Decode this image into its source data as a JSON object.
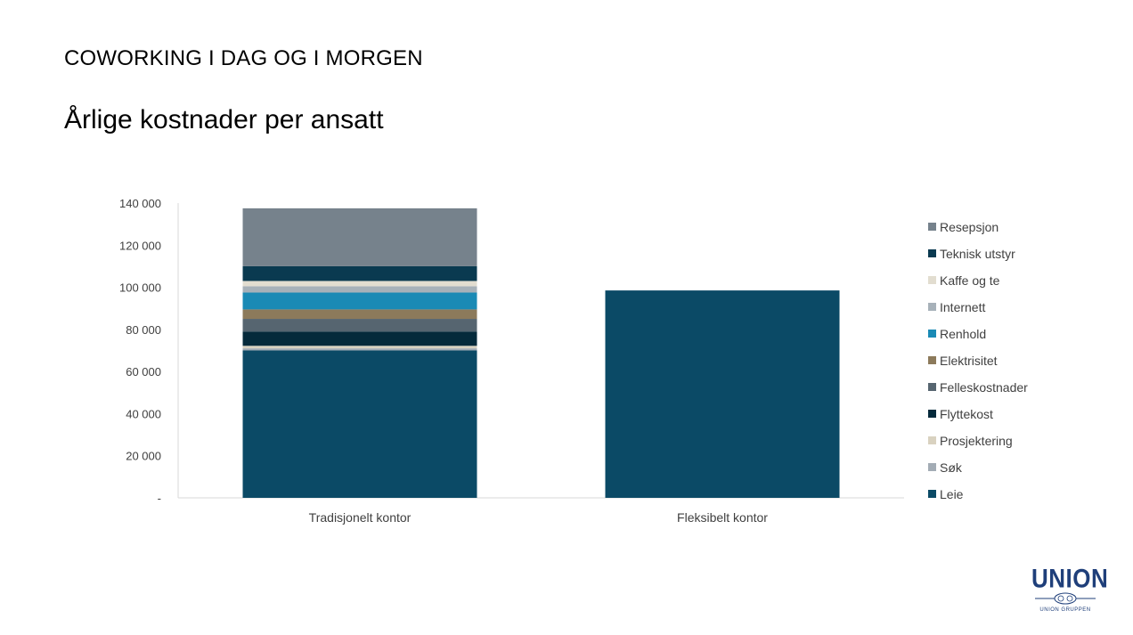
{
  "slide": {
    "heading": "COWORKING I DAG OG I MORGEN",
    "subheading": "Årlige kostnader per ansatt"
  },
  "logo": {
    "word": "UNION",
    "sub": "UNION GRUPPEN"
  },
  "chart_data": {
    "type": "bar",
    "stacked": true,
    "categories": [
      "Tradisjonelt kontor",
      "Fleksibelt kontor"
    ],
    "ylim": [
      0,
      140000
    ],
    "yticks": [
      0,
      20000,
      40000,
      60000,
      80000,
      100000,
      120000,
      140000
    ],
    "ytick_labels": [
      "-",
      "20 000",
      "40 000",
      "60 000",
      "80 000",
      "100 000",
      "120 000",
      "140 000"
    ],
    "legend_position": "right",
    "series": [
      {
        "name": "Leie",
        "color": "#0b4a66",
        "values": [
          70000,
          98500
        ]
      },
      {
        "name": "Søk",
        "color": "#a3acb5",
        "values": [
          1000,
          0
        ]
      },
      {
        "name": "Prosjektering",
        "color": "#d9d2c0",
        "values": [
          1200,
          0
        ]
      },
      {
        "name": "Flyttekost",
        "color": "#052a3b",
        "values": [
          6800,
          0
        ]
      },
      {
        "name": "Felleskostnader",
        "color": "#566570",
        "values": [
          6000,
          0
        ]
      },
      {
        "name": "Elektrisitet",
        "color": "#8c7a5b",
        "values": [
          4500,
          0
        ]
      },
      {
        "name": "Renhold",
        "color": "#1a8ab5",
        "values": [
          8000,
          0
        ]
      },
      {
        "name": "Internett",
        "color": "#a7b1b9",
        "values": [
          3000,
          0
        ]
      },
      {
        "name": "Kaffe og te",
        "color": "#e2ddd0",
        "values": [
          2500,
          0
        ]
      },
      {
        "name": "Teknisk utstyr",
        "color": "#0a3a50",
        "values": [
          7000,
          0
        ]
      },
      {
        "name": "Resepsjon",
        "color": "#76828c",
        "values": [
          27500,
          0
        ]
      }
    ]
  }
}
